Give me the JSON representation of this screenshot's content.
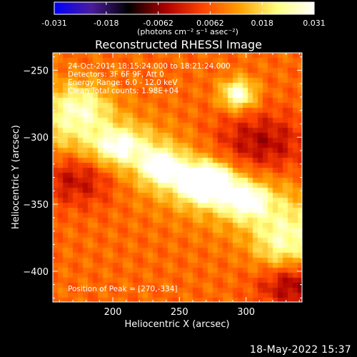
{
  "chart_data": {
    "type": "heatmap",
    "title": "Reconstructed RHESSI Image",
    "xlabel": "Heliocentric X (arcsec)",
    "ylabel": "Heliocentric Y (arcsec)",
    "xlim": [
      155,
      342
    ],
    "ylim": [
      -423,
      -237
    ],
    "xticks": [
      200,
      250,
      300
    ],
    "yticks": [
      -250,
      -300,
      -350,
      -400
    ],
    "colorbar": {
      "min": -0.031,
      "max": 0.031,
      "ticks": [
        "-0.031",
        "-0.018",
        "-0.0062",
        "0.0062",
        "0.018",
        "0.031"
      ],
      "label": "(photons cm⁻² s⁻¹ asec⁻²)",
      "colors": [
        "#0000ff",
        "#4b1c9c",
        "#000000",
        "#ad0000",
        "#ff4400",
        "#ffa000",
        "#ffff80",
        "#ffffff"
      ]
    },
    "annotations": [
      "24-Oct-2014 18:15:24.000 to 18:21:24.000",
      "Detectors: 3F 6F 9F, Att 0",
      "Energy Range: 6.0 - 12.0 keV",
      "Clean    Total counts: 1.98E+04"
    ],
    "peak_label": "Position of Peak = [270,-334]",
    "peak": [
      270,
      -334
    ],
    "sources": [
      {
        "x": 270,
        "y": -334,
        "amp": 0.031,
        "sx": 13,
        "sy": 9
      },
      {
        "x": 237,
        "y": -322,
        "amp": 0.021,
        "sx": 9,
        "sy": 8
      },
      {
        "x": 300,
        "y": -347,
        "amp": 0.017,
        "sx": 11,
        "sy": 8
      },
      {
        "x": 205,
        "y": -307,
        "amp": 0.014,
        "sx": 13,
        "sy": 9
      },
      {
        "x": 294,
        "y": -268,
        "amp": 0.022,
        "sx": 9,
        "sy": 8
      },
      {
        "x": 178,
        "y": -276,
        "amp": 0.012,
        "sx": 14,
        "sy": 12
      },
      {
        "x": 325,
        "y": -383,
        "amp": 0.011,
        "sx": 14,
        "sy": 14
      }
    ],
    "ridge": {
      "x0": 160,
      "y0": -290,
      "x1": 340,
      "y1": -365,
      "amp": 0.012,
      "width": 18
    },
    "background": 0.008,
    "negative_troughs": [
      {
        "x": 175,
        "y": -330,
        "amp": -0.012,
        "sx": 22,
        "sy": 14
      },
      {
        "x": 310,
        "y": -305,
        "amp": -0.012,
        "sx": 25,
        "sy": 16
      },
      {
        "x": 335,
        "y": -410,
        "amp": -0.014,
        "sx": 18,
        "sy": 12
      }
    ]
  },
  "footer_date": "18-May-2022 15:37"
}
